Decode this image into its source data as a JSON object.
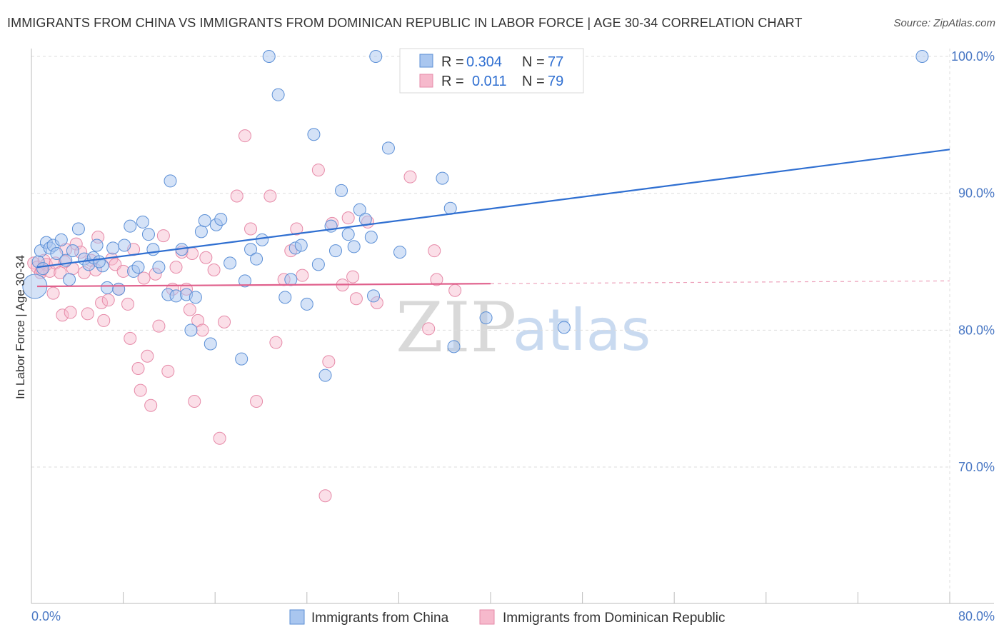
{
  "title": "IMMIGRANTS FROM CHINA VS IMMIGRANTS FROM DOMINICAN REPUBLIC IN LABOR FORCE | AGE 30-34 CORRELATION CHART",
  "source": "Source: ZipAtlas.com",
  "watermark": {
    "zip": "ZIP",
    "atlas": "atlas"
  },
  "legend": {
    "r_label": "R =",
    "n_label": "N =",
    "china": {
      "r": "0.304",
      "n": "77"
    },
    "dominican": {
      "r": "0.011",
      "n": "79"
    }
  },
  "colors": {
    "china_fill": "#a9c6ef",
    "china_stroke": "#5b8fd6",
    "china_line": "#2f6fd1",
    "dominican_fill": "#f6b9cc",
    "dominican_stroke": "#e68aa8",
    "dominican_line": "#e0608c"
  },
  "chart_data": {
    "type": "scatter",
    "title": "IMMIGRANTS FROM CHINA VS IMMIGRANTS FROM DOMINICAN REPUBLIC IN LABOR FORCE | AGE 30-34 CORRELATION CHART",
    "xlabel": "",
    "ylabel": "In Labor Force | Age 30-34",
    "xlim": [
      0,
      80
    ],
    "ylim": [
      60,
      104
    ],
    "x_tick_labels": [
      "0.0%",
      "80.0%"
    ],
    "y_ticks": [
      70,
      80,
      90,
      100
    ],
    "y_tick_labels": [
      "70.0%",
      "80.0%",
      "90.0%",
      "100.0%"
    ],
    "grid": true,
    "legend_position": "top-center",
    "series": [
      {
        "name": "Immigrants from China",
        "r": 0.304,
        "n": 77,
        "trend": {
          "x": [
            0.5,
            80
          ],
          "y": [
            84.6,
            93.2
          ],
          "dashed_from": null
        },
        "points": [
          [
            0.3,
            83.2
          ],
          [
            0.6,
            85.0
          ],
          [
            0.8,
            85.8
          ],
          [
            1.0,
            84.5
          ],
          [
            1.3,
            86.4
          ],
          [
            1.6,
            86.0
          ],
          [
            1.9,
            86.2
          ],
          [
            2.2,
            85.6
          ],
          [
            2.6,
            86.6
          ],
          [
            3.0,
            85.1
          ],
          [
            3.3,
            83.7
          ],
          [
            3.6,
            85.8
          ],
          [
            4.1,
            87.4
          ],
          [
            4.6,
            85.2
          ],
          [
            5.0,
            84.8
          ],
          [
            5.4,
            85.3
          ],
          [
            5.7,
            86.2
          ],
          [
            6.2,
            84.7
          ],
          [
            6.6,
            83.1
          ],
          [
            7.1,
            86.0
          ],
          [
            7.6,
            83.0
          ],
          [
            8.1,
            86.2
          ],
          [
            8.6,
            87.6
          ],
          [
            8.9,
            84.3
          ],
          [
            9.3,
            84.6
          ],
          [
            9.7,
            87.9
          ],
          [
            10.2,
            87.0
          ],
          [
            10.6,
            85.9
          ],
          [
            11.1,
            84.6
          ],
          [
            11.9,
            82.6
          ],
          [
            12.1,
            90.9
          ],
          [
            12.6,
            82.5
          ],
          [
            13.1,
            85.9
          ],
          [
            13.5,
            82.6
          ],
          [
            13.9,
            80.0
          ],
          [
            14.3,
            82.4
          ],
          [
            14.8,
            87.2
          ],
          [
            15.1,
            88.0
          ],
          [
            15.6,
            79.0
          ],
          [
            16.1,
            87.7
          ],
          [
            16.5,
            88.1
          ],
          [
            17.3,
            84.9
          ],
          [
            18.3,
            77.9
          ],
          [
            18.6,
            83.6
          ],
          [
            19.1,
            85.9
          ],
          [
            19.6,
            85.2
          ],
          [
            20.1,
            86.6
          ],
          [
            20.7,
            100.0
          ],
          [
            21.5,
            97.2
          ],
          [
            22.1,
            82.4
          ],
          [
            22.6,
            83.7
          ],
          [
            23.0,
            86.0
          ],
          [
            23.5,
            86.2
          ],
          [
            24.0,
            81.9
          ],
          [
            24.6,
            94.3
          ],
          [
            25.0,
            84.8
          ],
          [
            25.6,
            76.7
          ],
          [
            26.1,
            87.6
          ],
          [
            26.5,
            85.8
          ],
          [
            27.0,
            90.2
          ],
          [
            27.6,
            87.0
          ],
          [
            28.1,
            86.1
          ],
          [
            28.6,
            88.8
          ],
          [
            29.1,
            88.1
          ],
          [
            29.6,
            86.8
          ],
          [
            30.0,
            100.0
          ],
          [
            31.1,
            93.3
          ],
          [
            32.1,
            85.7
          ],
          [
            33.0,
            100.0
          ],
          [
            35.8,
            91.1
          ],
          [
            36.5,
            88.9
          ],
          [
            36.8,
            78.8
          ],
          [
            39.6,
            80.9
          ],
          [
            46.4,
            80.2
          ],
          [
            77.6,
            100.0
          ],
          [
            29.8,
            82.5
          ],
          [
            5.9,
            85.0
          ]
        ]
      },
      {
        "name": "Immigrants from Dominican Republic",
        "r": 0.011,
        "n": 79,
        "trend": {
          "x": [
            0.5,
            80
          ],
          "y": [
            83.2,
            83.6
          ],
          "dashed_from": 40
        },
        "points": [
          [
            0.2,
            84.9
          ],
          [
            0.5,
            84.6
          ],
          [
            0.8,
            84.2
          ],
          [
            1.1,
            85.1
          ],
          [
            1.3,
            84.8
          ],
          [
            1.6,
            84.3
          ],
          [
            1.9,
            82.7
          ],
          [
            2.1,
            84.9
          ],
          [
            2.5,
            84.2
          ],
          [
            2.7,
            81.1
          ],
          [
            3.0,
            85.9
          ],
          [
            3.4,
            81.3
          ],
          [
            3.6,
            84.5
          ],
          [
            3.9,
            86.3
          ],
          [
            4.3,
            85.7
          ],
          [
            4.6,
            84.2
          ],
          [
            4.9,
            81.2
          ],
          [
            5.2,
            85.1
          ],
          [
            5.6,
            84.4
          ],
          [
            5.8,
            86.8
          ],
          [
            6.1,
            82.0
          ],
          [
            6.3,
            80.7
          ],
          [
            6.7,
            82.2
          ],
          [
            7.0,
            85.2
          ],
          [
            7.3,
            84.8
          ],
          [
            7.6,
            83.0
          ],
          [
            8.0,
            84.3
          ],
          [
            8.4,
            81.9
          ],
          [
            8.6,
            79.4
          ],
          [
            8.9,
            85.9
          ],
          [
            9.3,
            77.2
          ],
          [
            9.5,
            75.6
          ],
          [
            9.8,
            83.8
          ],
          [
            10.1,
            78.1
          ],
          [
            10.4,
            74.5
          ],
          [
            10.8,
            84.1
          ],
          [
            11.1,
            80.3
          ],
          [
            11.5,
            86.9
          ],
          [
            11.9,
            77.0
          ],
          [
            12.3,
            83.0
          ],
          [
            12.6,
            84.6
          ],
          [
            13.1,
            85.7
          ],
          [
            13.5,
            83.0
          ],
          [
            13.8,
            81.5
          ],
          [
            14.2,
            74.8
          ],
          [
            14.5,
            80.7
          ],
          [
            14.9,
            80.0
          ],
          [
            15.2,
            85.3
          ],
          [
            15.9,
            84.4
          ],
          [
            16.4,
            72.1
          ],
          [
            16.8,
            80.6
          ],
          [
            17.9,
            89.8
          ],
          [
            18.6,
            94.2
          ],
          [
            19.1,
            87.4
          ],
          [
            19.6,
            74.8
          ],
          [
            20.8,
            89.8
          ],
          [
            21.3,
            79.1
          ],
          [
            22.0,
            83.7
          ],
          [
            22.6,
            85.8
          ],
          [
            23.1,
            87.4
          ],
          [
            23.6,
            84.0
          ],
          [
            25.0,
            91.7
          ],
          [
            25.6,
            67.9
          ],
          [
            25.9,
            77.7
          ],
          [
            26.2,
            87.8
          ],
          [
            27.1,
            83.3
          ],
          [
            27.6,
            88.2
          ],
          [
            28.0,
            83.9
          ],
          [
            28.3,
            82.3
          ],
          [
            29.3,
            87.9
          ],
          [
            30.1,
            82.0
          ],
          [
            33.0,
            91.2
          ],
          [
            34.6,
            80.1
          ],
          [
            35.1,
            85.8
          ],
          [
            35.3,
            83.7
          ],
          [
            36.9,
            82.9
          ],
          [
            0.9,
            84.4
          ],
          [
            2.9,
            85.0
          ],
          [
            14.0,
            85.6
          ]
        ]
      }
    ]
  },
  "bottom_legend": {
    "china": "Immigrants from China",
    "dominican": "Immigrants from Dominican Republic"
  }
}
